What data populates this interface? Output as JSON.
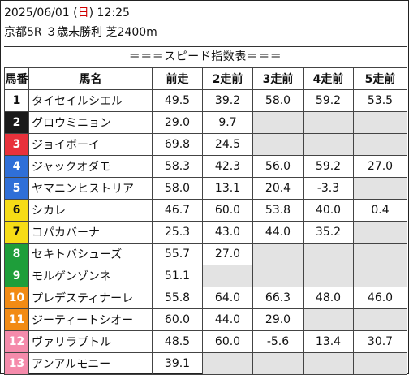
{
  "header": {
    "date": "2025/06/01",
    "weekday_open": "(",
    "weekday": "日",
    "weekday_close": ")",
    "time": "12:25",
    "race_info": "京都5R ３歳未勝利 芝2400m"
  },
  "table_title": "＝＝＝スピード指数表＝＝＝",
  "columns": [
    "馬番",
    "馬名",
    "前走",
    "2走前",
    "3走前",
    "4走前",
    "5走前"
  ],
  "colors": {
    "white": "#ffffff",
    "black": "#1a1a1a",
    "red": "#e8313b",
    "blue": "#2f6fd8",
    "yellow": "#f6dc16",
    "green": "#1e9e3a",
    "orange": "#f28b14",
    "pink": "#f58bab",
    "empty_cell": "#e3e3e3"
  },
  "rows": [
    {
      "no": "1",
      "color": "white",
      "name": "タイセイルシエル",
      "values": [
        "49.5",
        "39.2",
        "58.0",
        "59.2",
        "53.5"
      ]
    },
    {
      "no": "2",
      "color": "black",
      "name": "グロウミニョン",
      "values": [
        "29.0",
        "9.7",
        null,
        null,
        null
      ]
    },
    {
      "no": "3",
      "color": "red",
      "name": "ジョイボーイ",
      "values": [
        "69.8",
        "24.5",
        null,
        null,
        null
      ]
    },
    {
      "no": "4",
      "color": "blue",
      "name": "ジャックオダモ",
      "values": [
        "58.3",
        "42.3",
        "56.0",
        "59.2",
        "27.0"
      ]
    },
    {
      "no": "5",
      "color": "blue",
      "name": "ヤマニンヒストリア",
      "values": [
        "58.0",
        "13.1",
        "20.4",
        "-3.3",
        null
      ]
    },
    {
      "no": "6",
      "color": "yellow",
      "name": "シカレ",
      "values": [
        "46.7",
        "60.0",
        "53.8",
        "40.0",
        "0.4"
      ]
    },
    {
      "no": "7",
      "color": "yellow",
      "name": "コパカバーナ",
      "values": [
        "25.3",
        "43.0",
        "44.0",
        "35.2",
        null
      ]
    },
    {
      "no": "8",
      "color": "green",
      "name": "セキトバシューズ",
      "values": [
        "55.7",
        "27.0",
        null,
        null,
        null
      ]
    },
    {
      "no": "9",
      "color": "green",
      "name": "モルゲンゾンネ",
      "values": [
        "51.1",
        null,
        null,
        null,
        null
      ]
    },
    {
      "no": "10",
      "color": "orange",
      "name": "プレデスティナーレ",
      "values": [
        "55.8",
        "64.0",
        "66.3",
        "48.0",
        "46.0"
      ]
    },
    {
      "no": "11",
      "color": "orange",
      "name": "ジーティートシオー",
      "values": [
        "60.0",
        "44.0",
        "29.0",
        null,
        null
      ]
    },
    {
      "no": "12",
      "color": "pink",
      "name": "ヴァリラプトル",
      "values": [
        "48.5",
        "60.0",
        "-5.6",
        "13.4",
        "30.7"
      ]
    },
    {
      "no": "13",
      "color": "pink",
      "name": "アンアルモニー",
      "values": [
        "39.1",
        null,
        null,
        null,
        null
      ]
    }
  ]
}
